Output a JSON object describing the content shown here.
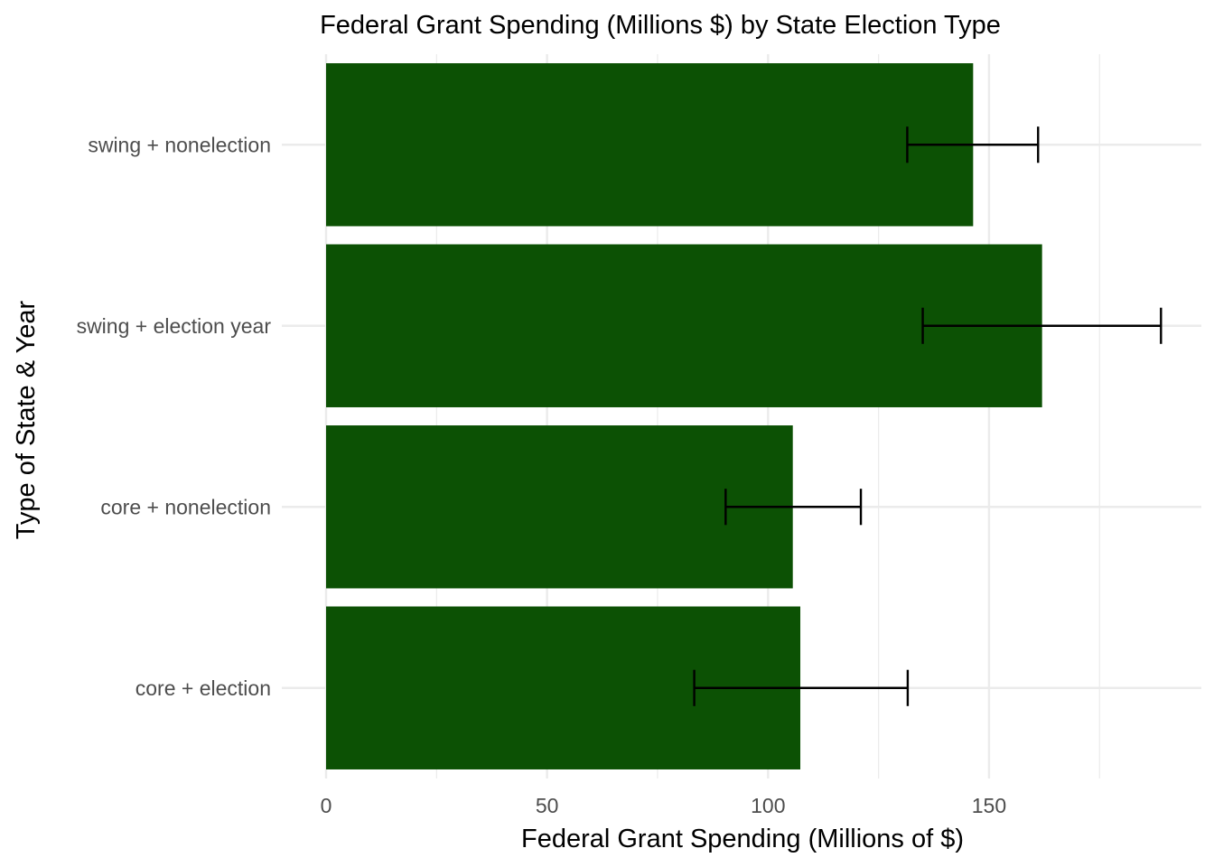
{
  "chart_data": {
    "type": "bar",
    "orientation": "horizontal",
    "title": "Federal Grant Spending (Millions $) by State Election Type",
    "xlabel": "Federal Grant Spending (Millions of $)",
    "ylabel": "Type of State & Year",
    "categories": [
      "core + election",
      "core + nonelection",
      "swing + election year",
      "swing + nonelection"
    ],
    "values": [
      107.3,
      105.6,
      162.0,
      146.4
    ],
    "error_low": [
      83.3,
      90.4,
      135.0,
      131.5
    ],
    "error_high": [
      131.6,
      121.0,
      188.9,
      161.1
    ],
    "xlim": [
      0,
      198
    ],
    "x_ticks": [
      0,
      50,
      100,
      150
    ],
    "x_minor_ticks": [
      25,
      75,
      125,
      175
    ],
    "x_tick_labels": [
      "0",
      "50",
      "100",
      "150"
    ],
    "grid": true,
    "bar_color": "#0c5104",
    "errorbar_color": "#000000",
    "grid_color": "#ebebeb"
  }
}
